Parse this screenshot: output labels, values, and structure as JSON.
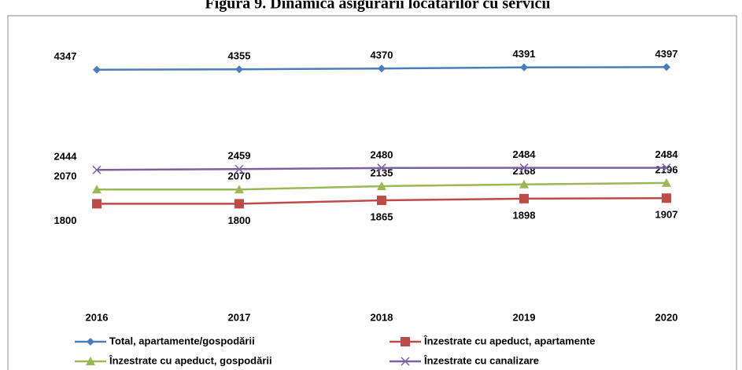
{
  "chart_data": {
    "type": "line",
    "title": "Figura 9. Dinamica asigurării locatarilor cu servicii",
    "categories": [
      "2016",
      "2017",
      "2018",
      "2019",
      "2020"
    ],
    "series": [
      {
        "name": "Total, apartamente/gospodării",
        "color": "#4a7ebb",
        "marker": "diamond",
        "values": [
          4347,
          4355,
          4370,
          4391,
          4397
        ]
      },
      {
        "name": "Înzestrate cu apeduct, apartamente",
        "color": "#be4b48",
        "marker": "square",
        "values": [
          1800,
          1800,
          1865,
          1898,
          1907
        ]
      },
      {
        "name": "Înzestrate cu apeduct, gospodării",
        "color": "#98b954",
        "marker": "triangle",
        "values": [
          2070,
          2070,
          2135,
          2168,
          2196
        ]
      },
      {
        "name": "Înzestrate cu canalizare",
        "color": "#7d60a0",
        "marker": "x",
        "values": [
          2444,
          2459,
          2480,
          2484,
          2484
        ]
      }
    ],
    "ylim": [
      0,
      5000
    ],
    "legend": "bottom"
  }
}
